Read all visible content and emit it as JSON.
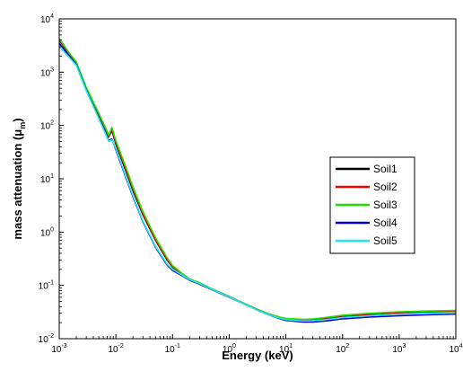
{
  "chart_data": {
    "type": "line",
    "title": "",
    "xlabel": "Energy (keV)",
    "ylabel_main": "mass attenuation (μ",
    "ylabel_sub": "m",
    "ylabel_end": ")",
    "x_scale": "log",
    "y_scale": "log",
    "xlim": [
      0.001,
      10000
    ],
    "ylim": [
      0.01,
      10000
    ],
    "x_ticks": [
      {
        "base": "10",
        "exp": "-3"
      },
      {
        "base": "10",
        "exp": "-2"
      },
      {
        "base": "10",
        "exp": "-1"
      },
      {
        "base": "10",
        "exp": "0"
      },
      {
        "base": "10",
        "exp": "1"
      },
      {
        "base": "10",
        "exp": "2"
      },
      {
        "base": "10",
        "exp": "3"
      },
      {
        "base": "10",
        "exp": "4"
      }
    ],
    "y_ticks": [
      {
        "base": "10",
        "exp": "-2"
      },
      {
        "base": "10",
        "exp": "-1"
      },
      {
        "base": "10",
        "exp": "0"
      },
      {
        "base": "10",
        "exp": "1"
      },
      {
        "base": "10",
        "exp": "2"
      },
      {
        "base": "10",
        "exp": "3"
      },
      {
        "base": "10",
        "exp": "4"
      }
    ],
    "grid": false,
    "legend_position": "right-middle",
    "series": [
      {
        "name": "Soil1",
        "color": "#000000",
        "x": [
          0.001,
          0.0015,
          0.002,
          0.003,
          0.005,
          0.0075,
          0.0085,
          0.01,
          0.015,
          0.02,
          0.03,
          0.05,
          0.08,
          0.1,
          0.15,
          0.2,
          0.3,
          0.5,
          1,
          2,
          3,
          5,
          8,
          10,
          20,
          30,
          50,
          100,
          300,
          1000,
          3000,
          10000
        ],
        "y": [
          4000,
          2200,
          1500,
          500,
          160,
          62,
          80,
          45,
          14,
          6,
          2.1,
          0.7,
          0.3,
          0.22,
          0.16,
          0.13,
          0.11,
          0.085,
          0.062,
          0.044,
          0.036,
          0.029,
          0.025,
          0.0235,
          0.0225,
          0.0228,
          0.024,
          0.026,
          0.028,
          0.03,
          0.031,
          0.032
        ]
      },
      {
        "name": "Soil2",
        "color": "#ff0000",
        "x": [
          0.001,
          0.0015,
          0.002,
          0.003,
          0.005,
          0.0075,
          0.0085,
          0.01,
          0.015,
          0.02,
          0.03,
          0.05,
          0.08,
          0.1,
          0.15,
          0.2,
          0.3,
          0.5,
          1,
          2,
          3,
          5,
          8,
          10,
          20,
          30,
          50,
          100,
          300,
          1000,
          3000,
          10000
        ],
        "y": [
          4100,
          2250,
          1520,
          510,
          165,
          64,
          85,
          48,
          15,
          6.4,
          2.2,
          0.72,
          0.31,
          0.225,
          0.16,
          0.13,
          0.11,
          0.085,
          0.062,
          0.044,
          0.036,
          0.029,
          0.025,
          0.0237,
          0.0228,
          0.023,
          0.0245,
          0.027,
          0.029,
          0.031,
          0.032,
          0.033
        ]
      },
      {
        "name": "Soil3",
        "color": "#22dd00",
        "x": [
          0.001,
          0.0015,
          0.002,
          0.003,
          0.005,
          0.0075,
          0.0085,
          0.01,
          0.015,
          0.02,
          0.03,
          0.05,
          0.08,
          0.1,
          0.15,
          0.2,
          0.3,
          0.5,
          1,
          2,
          3,
          5,
          8,
          10,
          20,
          30,
          50,
          100,
          300,
          1000,
          3000,
          10000
        ],
        "y": [
          4300,
          2300,
          1550,
          520,
          170,
          66,
          92,
          52,
          16.5,
          7,
          2.4,
          0.78,
          0.33,
          0.235,
          0.165,
          0.132,
          0.112,
          0.086,
          0.062,
          0.044,
          0.036,
          0.029,
          0.0252,
          0.024,
          0.023,
          0.0235,
          0.025,
          0.0275,
          0.03,
          0.032,
          0.033,
          0.034
        ]
      },
      {
        "name": "Soil4",
        "color": "#0000cc",
        "x": [
          0.001,
          0.0015,
          0.002,
          0.003,
          0.005,
          0.0075,
          0.0085,
          0.01,
          0.015,
          0.02,
          0.03,
          0.05,
          0.08,
          0.1,
          0.15,
          0.2,
          0.3,
          0.5,
          1,
          2,
          3,
          5,
          8,
          10,
          20,
          30,
          50,
          100,
          300,
          1000,
          3000,
          10000
        ],
        "y": [
          3500,
          2000,
          1400,
          460,
          140,
          52,
          56,
          35,
          10.5,
          4.6,
          1.55,
          0.52,
          0.24,
          0.19,
          0.15,
          0.125,
          0.105,
          0.083,
          0.06,
          0.043,
          0.035,
          0.028,
          0.0235,
          0.022,
          0.0205,
          0.0205,
          0.0215,
          0.0235,
          0.0255,
          0.027,
          0.028,
          0.029
        ]
      },
      {
        "name": "Soil5",
        "color": "#22e8ee",
        "x": [
          0.001,
          0.0015,
          0.002,
          0.003,
          0.005,
          0.0075,
          0.0085,
          0.01,
          0.015,
          0.02,
          0.03,
          0.05,
          0.08,
          0.1,
          0.15,
          0.2,
          0.3,
          0.5,
          1,
          2,
          3,
          5,
          8,
          10,
          20,
          30,
          50,
          100,
          300,
          1000,
          3000,
          10000
        ],
        "y": [
          3000,
          1900,
          1350,
          450,
          135,
          50,
          54,
          37,
          11,
          4.8,
          1.6,
          0.54,
          0.25,
          0.2,
          0.155,
          0.128,
          0.108,
          0.084,
          0.061,
          0.043,
          0.035,
          0.028,
          0.024,
          0.0228,
          0.0215,
          0.0218,
          0.0228,
          0.025,
          0.027,
          0.029,
          0.03,
          0.031
        ]
      }
    ]
  }
}
